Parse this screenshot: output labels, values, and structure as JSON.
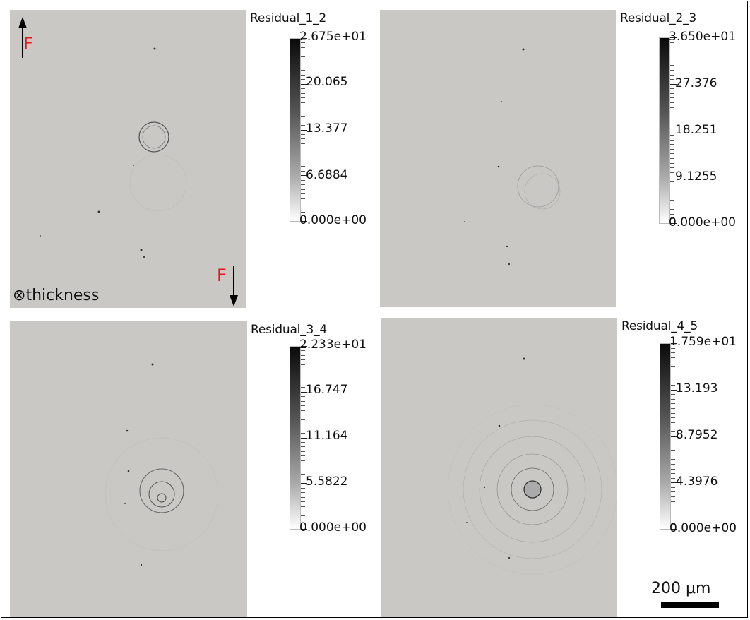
{
  "annotations": {
    "force_label": "F",
    "thickness_symbol": "⊗",
    "thickness_label": "thickness",
    "scale_label": "200 μm"
  },
  "panels": [
    {
      "title": "Residual_1_2",
      "ticks": [
        "2.675e+01",
        "20.065",
        "13.377",
        "6.6884",
        "0.000e+00"
      ]
    },
    {
      "title": "Residual_2_3",
      "ticks": [
        "3.650e+01",
        "27.376",
        "18.251",
        "9.1255",
        "0.000e+00"
      ]
    },
    {
      "title": "Residual_3_4",
      "ticks": [
        "2.233e+01",
        "16.747",
        "11.164",
        "5.5822",
        "0.000e+00"
      ]
    },
    {
      "title": "Residual_4_5",
      "ticks": [
        "1.759e+01",
        "13.193",
        "8.7952",
        "4.3976",
        "0.000e+00"
      ]
    }
  ]
}
